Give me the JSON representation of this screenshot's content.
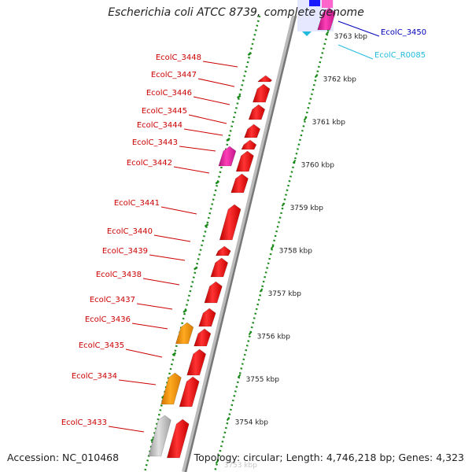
{
  "title": "Escherichia coli ATCC 8739, complete genome",
  "footer": {
    "accession": "Accession: NC_010468",
    "summary": "Topology: circular; Length: 4,746,218 bp; Genes: 4,323"
  },
  "colors": {
    "cds": "#ee1111",
    "cds_pink": "#e0209a",
    "cds_orange": "#f39200",
    "cds_gray": "#b8b8b8",
    "label_red": "#cc0000",
    "label_blue": "#0000bb",
    "label_cyan": "#22bbdd",
    "ticks": "#1a8a1a",
    "backbone": "#888888"
  },
  "scale_labels": [
    {
      "text": "3763 kbp",
      "kbp": 3763
    },
    {
      "text": "3762 kbp",
      "kbp": 3762
    },
    {
      "text": "3761 kbp",
      "kbp": 3761
    },
    {
      "text": "3760 kbp",
      "kbp": 3760
    },
    {
      "text": "3759 kbp",
      "kbp": 3759
    },
    {
      "text": "3758 kbp",
      "kbp": 3758
    },
    {
      "text": "3757 kbp",
      "kbp": 3757
    },
    {
      "text": "3756 kbp",
      "kbp": 3756
    },
    {
      "text": "3755 kbp",
      "kbp": 3755
    },
    {
      "text": "3754 kbp",
      "kbp": 3754
    },
    {
      "text": "3753 kbp",
      "kbp": 3753
    }
  ],
  "gene_labels": [
    {
      "text": "EcolC_3448",
      "kind": "red"
    },
    {
      "text": "EcolC_3447",
      "kind": "red"
    },
    {
      "text": "EcolC_3446",
      "kind": "red"
    },
    {
      "text": "EcolC_3445",
      "kind": "red"
    },
    {
      "text": "EcolC_3444",
      "kind": "red"
    },
    {
      "text": "EcolC_3443",
      "kind": "red"
    },
    {
      "text": "EcolC_3442",
      "kind": "red"
    },
    {
      "text": "EcolC_3441",
      "kind": "red"
    },
    {
      "text": "EcolC_3440",
      "kind": "red"
    },
    {
      "text": "EcolC_3439",
      "kind": "red"
    },
    {
      "text": "EcolC_3438",
      "kind": "red"
    },
    {
      "text": "EcolC_3437",
      "kind": "red"
    },
    {
      "text": "EcolC_3436",
      "kind": "red"
    },
    {
      "text": "EcolC_3435",
      "kind": "red"
    },
    {
      "text": "EcolC_3434",
      "kind": "red"
    },
    {
      "text": "EcolC_3433",
      "kind": "red"
    },
    {
      "text": "EcolC_3450",
      "kind": "blue"
    },
    {
      "text": "EcolC_R0085",
      "kind": "cyan"
    }
  ]
}
